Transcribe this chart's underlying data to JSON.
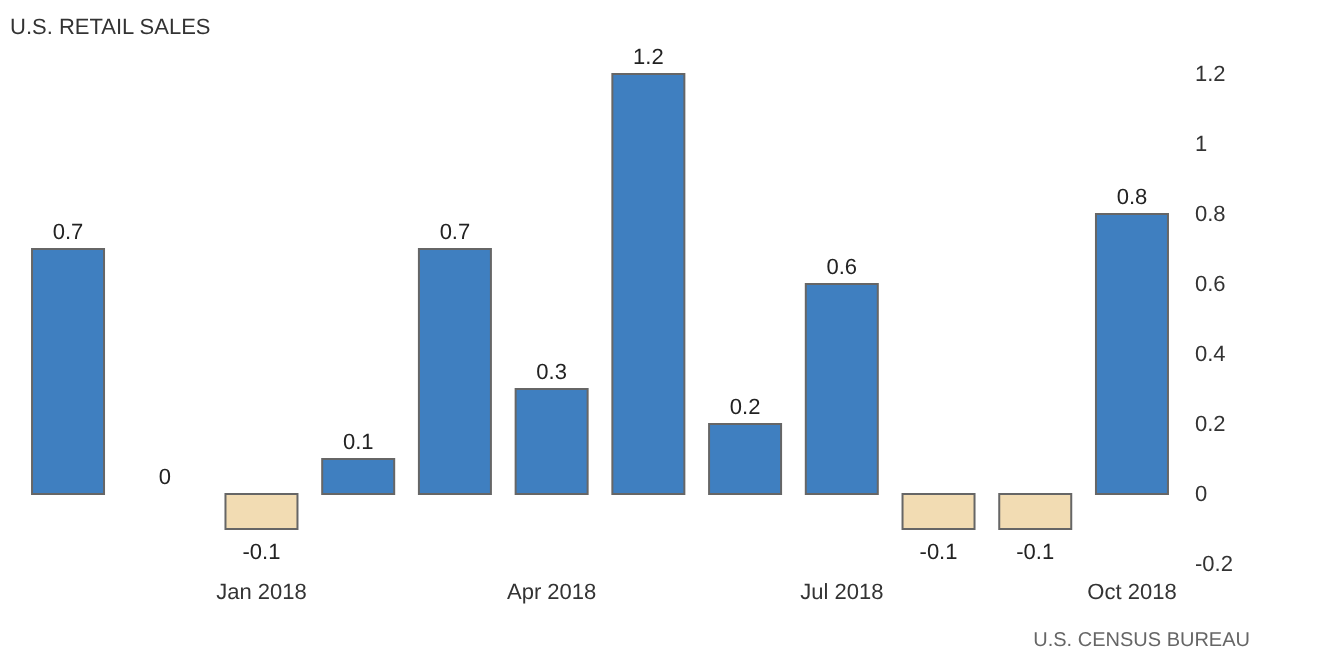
{
  "chart_data": {
    "type": "bar",
    "title": "U.S. RETAIL SALES",
    "categories": [
      null,
      null,
      "Jan 2018",
      null,
      null,
      "Apr 2018",
      null,
      null,
      "Jul 2018",
      null,
      null,
      "Oct 2018"
    ],
    "values": [
      0.7,
      0,
      -0.1,
      0.1,
      0.7,
      0.3,
      1.2,
      0.2,
      0.6,
      -0.1,
      -0.1,
      0.8
    ],
    "colors": [
      "#3f7fc0",
      "#3f7fc0",
      "#f2dcb3",
      "#3f7fc0",
      "#3f7fc0",
      "#3f7fc0",
      "#3f7fc0",
      "#3f7fc0",
      "#3f7fc0",
      "#f2dcb3",
      "#f2dcb3",
      "#3f7fc0"
    ],
    "ylim": [
      -0.2,
      1.2
    ],
    "yticks": [
      -0.2,
      0,
      0.2,
      0.4,
      0.6,
      0.8,
      1,
      1.2
    ],
    "data_labels": true,
    "grid": false,
    "annotations": [
      "U.S. CENSUS BUREAU"
    ]
  }
}
